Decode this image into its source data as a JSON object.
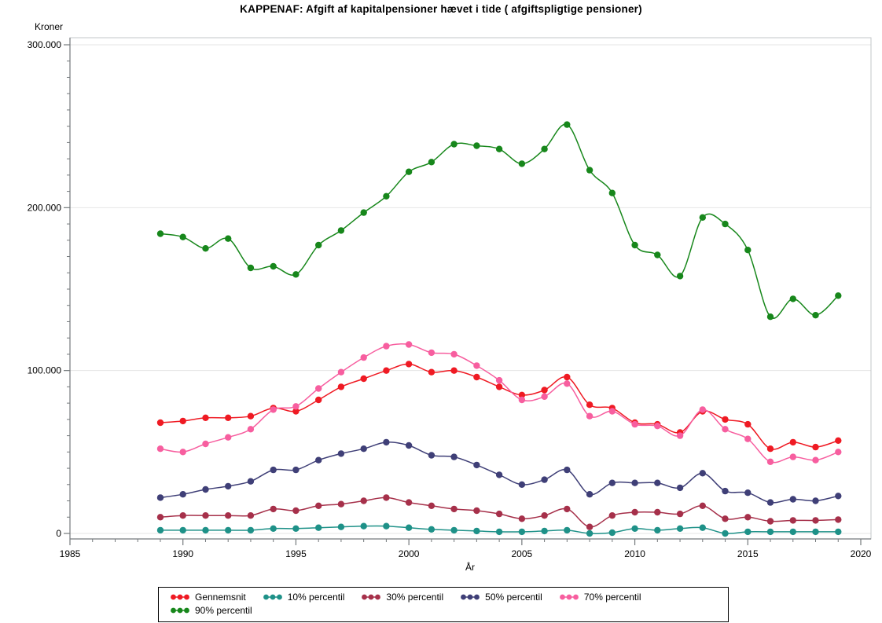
{
  "title": "KAPPENAF: Afgift af kapitalpensioner hævet i tide ( afgiftspligtige pensioner)",
  "chart_data": {
    "type": "line",
    "title": "KAPPENAF: Afgift af kapitalpensioner hævet i tide ( afgiftspligtige pensioner)",
    "xlabel": "År",
    "ylabel": "Kroner",
    "xlim": [
      1985,
      2020
    ],
    "ylim": [
      0,
      300000
    ],
    "grid": "horizontal",
    "legend_position": "bottom",
    "x_tick_labels": [
      "1985",
      "1990",
      "1995",
      "2000",
      "2005",
      "2010",
      "2015",
      "2020"
    ],
    "x_tick_values": [
      1985,
      1990,
      1995,
      2000,
      2005,
      2010,
      2015,
      2020
    ],
    "x_minor_step": 1,
    "y_tick_labels": [
      "0",
      "100.000",
      "200.000",
      "300.000"
    ],
    "y_tick_values": [
      0,
      100000,
      200000,
      300000
    ],
    "y_minor_step": 10000,
    "x": [
      1989,
      1990,
      1991,
      1992,
      1993,
      1994,
      1995,
      1996,
      1997,
      1998,
      1999,
      2000,
      2001,
      2002,
      2003,
      2004,
      2005,
      2006,
      2007,
      2008,
      2009,
      2010,
      2011,
      2012,
      2013,
      2014,
      2015,
      2016,
      2017,
      2018,
      2019
    ],
    "series": [
      {
        "name": "Gennemsnit",
        "color": "#EF1A23",
        "values": [
          68000,
          69000,
          71000,
          71000,
          72000,
          77000,
          75000,
          82000,
          90000,
          95000,
          100000,
          104000,
          99000,
          100000,
          96000,
          90000,
          85000,
          88000,
          96000,
          79000,
          77000,
          68000,
          67000,
          62000,
          75000,
          70000,
          67000,
          52000,
          56000,
          53000,
          57000
        ]
      },
      {
        "name": "10% percentil",
        "color": "#1E9188",
        "values": [
          2000,
          2000,
          2000,
          2000,
          2000,
          3000,
          3000,
          3500,
          4000,
          4500,
          4500,
          3500,
          2500,
          2000,
          1500,
          1000,
          1000,
          1500,
          2000,
          0,
          500,
          3000,
          2000,
          3000,
          3500,
          0,
          1000,
          1000,
          1000,
          1000,
          1000
        ]
      },
      {
        "name": "30% percentil",
        "color": "#A6304A",
        "values": [
          10000,
          11000,
          11000,
          11000,
          11000,
          15000,
          14000,
          17000,
          18000,
          20000,
          22000,
          19000,
          17000,
          15000,
          14000,
          12000,
          9000,
          11000,
          15000,
          4000,
          11000,
          13000,
          13000,
          12000,
          17000,
          9000,
          10000,
          7500,
          8000,
          8000,
          8500
        ]
      },
      {
        "name": "50% percentil",
        "color": "#3F3F77",
        "values": [
          22000,
          24000,
          27000,
          29000,
          32000,
          39000,
          39000,
          45000,
          49000,
          52000,
          56000,
          54000,
          48000,
          47000,
          42000,
          36000,
          30000,
          33000,
          39000,
          24000,
          31000,
          31000,
          31000,
          28000,
          37000,
          26000,
          25000,
          19000,
          21000,
          20000,
          23000
        ]
      },
      {
        "name": "70% percentil",
        "color": "#F75E9F",
        "values": [
          52000,
          50000,
          55000,
          59000,
          64000,
          76000,
          78000,
          89000,
          99000,
          108000,
          115000,
          116000,
          111000,
          110000,
          103000,
          94000,
          82000,
          84000,
          92000,
          72000,
          75000,
          67000,
          66000,
          60000,
          76000,
          64000,
          58000,
          44000,
          47000,
          45000,
          50000
        ]
      },
      {
        "name": "90% percentil",
        "color": "#17871B",
        "values": [
          184000,
          182000,
          175000,
          181000,
          163000,
          164000,
          159000,
          177000,
          186000,
          197000,
          207000,
          222000,
          228000,
          239000,
          238000,
          236000,
          227000,
          236000,
          251000,
          223000,
          209000,
          177000,
          171000,
          158000,
          194000,
          190000,
          174000,
          133000,
          144000,
          134000,
          146000
        ]
      }
    ]
  }
}
